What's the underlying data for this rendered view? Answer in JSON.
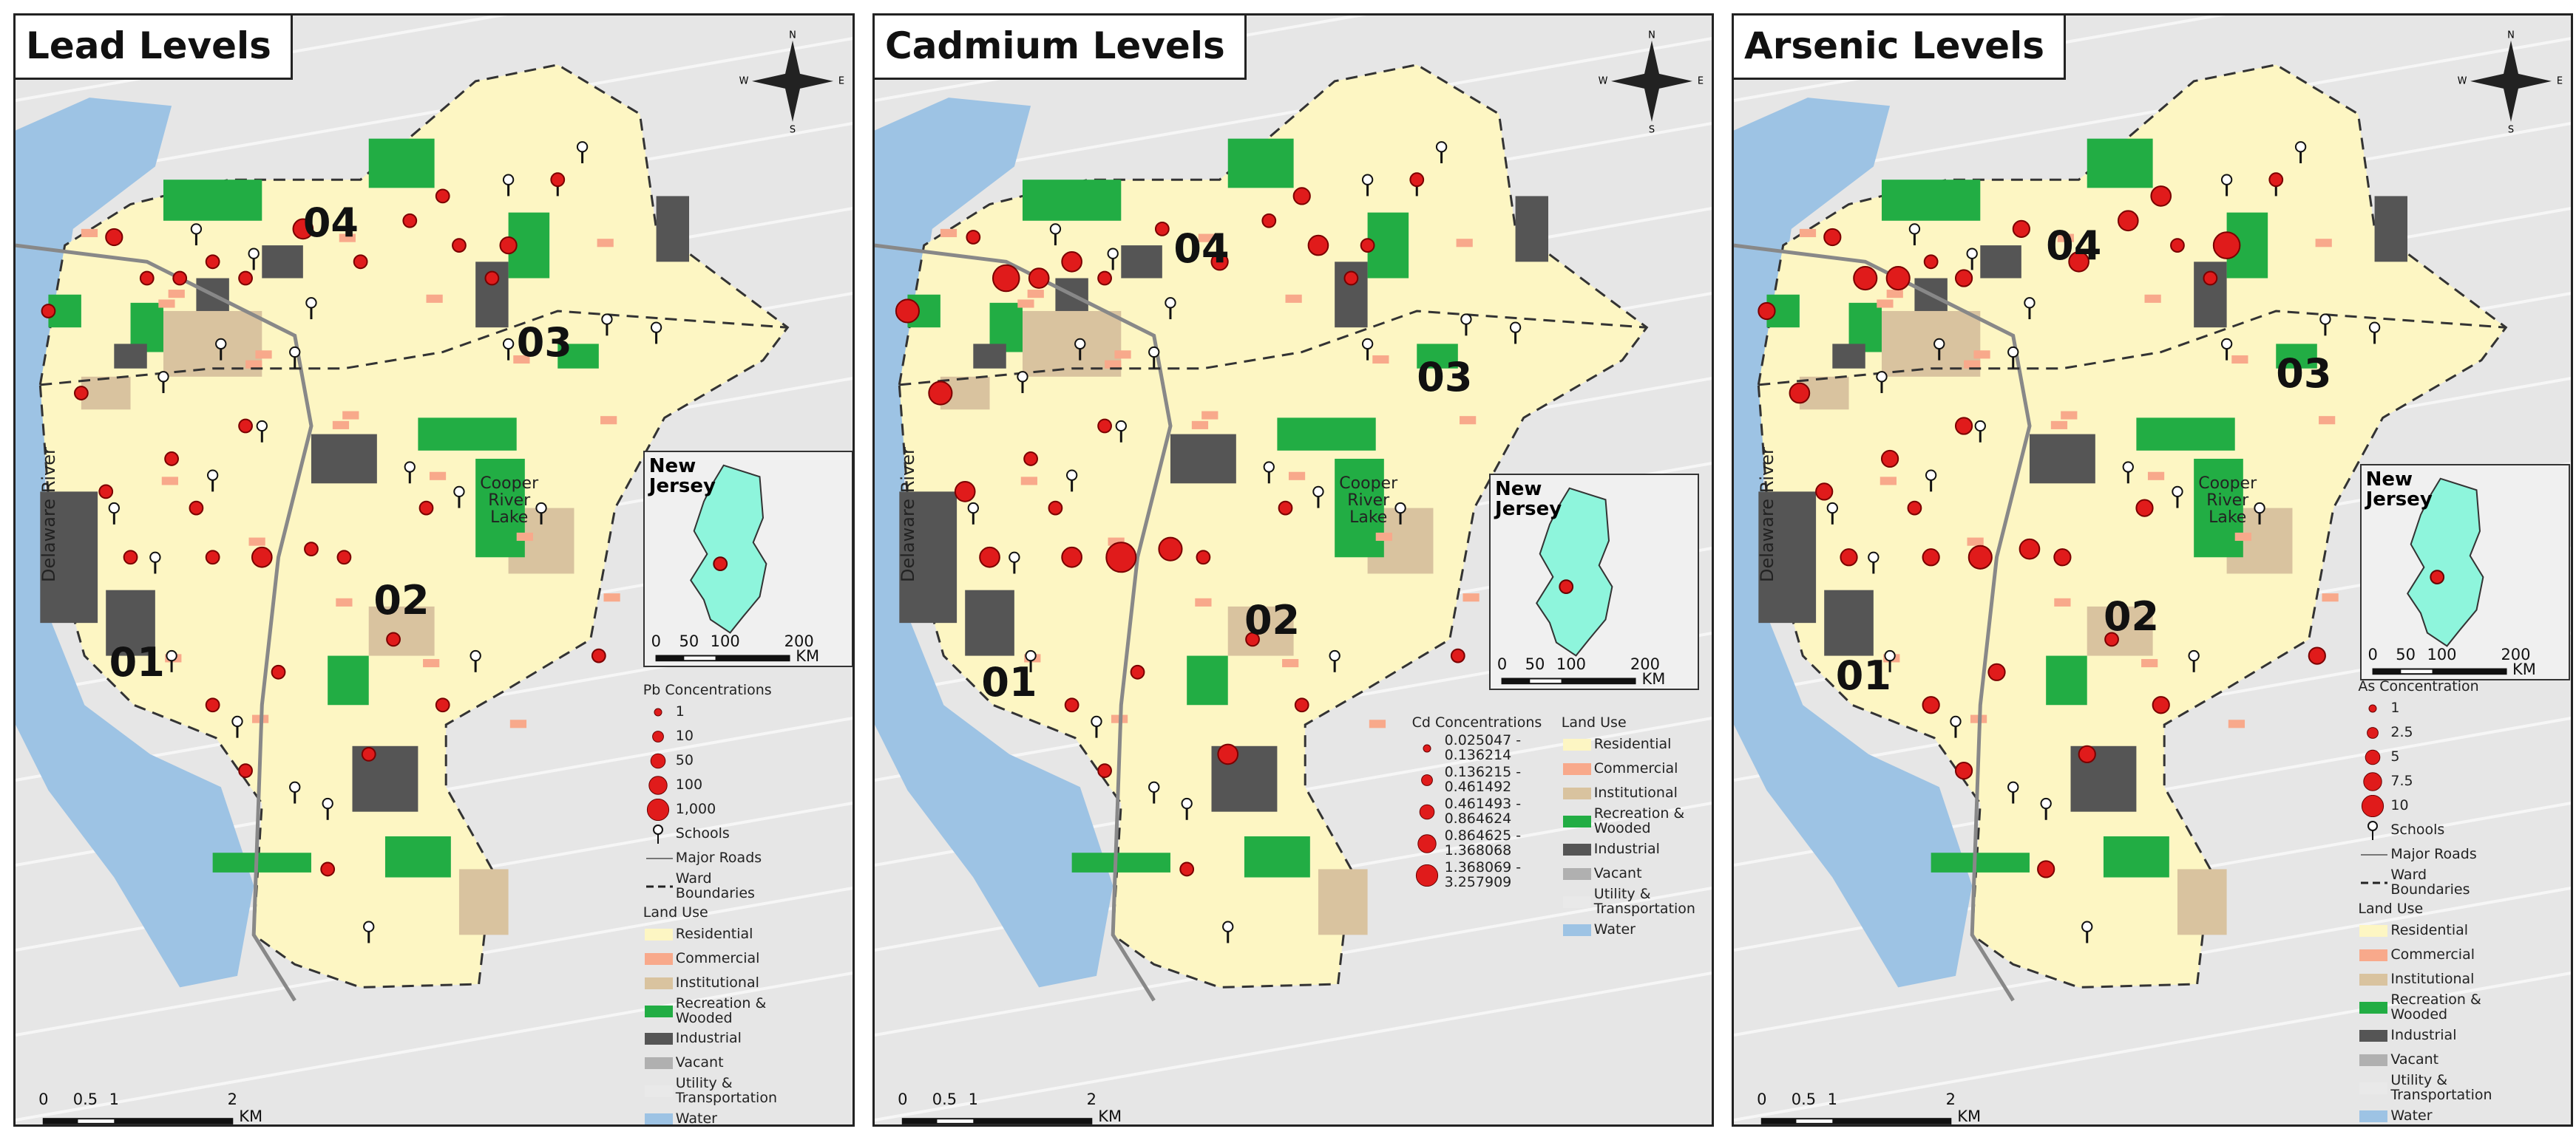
{
  "panels": [
    {
      "title": "Lead Levels",
      "compass": [
        "N",
        "E",
        "S",
        "W"
      ],
      "wards": [
        "04",
        "03",
        "02",
        "01"
      ],
      "river_label": "Delaware River",
      "lake_label": "Cooper River Lake",
      "inset": {
        "title": "New Jersey",
        "scale": [
          "0",
          "50",
          "100",
          "200"
        ],
        "unit": "KM"
      },
      "legend": {
        "concentration_title": "Pb Concentrations",
        "concentration_items": [
          "1",
          "10",
          "50",
          "100",
          "1,000"
        ],
        "schools": "Schools",
        "major_roads": "Major Roads",
        "ward_boundaries": "Ward Boundaries",
        "land_use_title": "Land Use",
        "land_use": [
          {
            "label": "Residential",
            "color": "#fdf6c3"
          },
          {
            "label": "Commercial",
            "color": "#f8a98b"
          },
          {
            "label": "Institutional",
            "color": "#d9c39f"
          },
          {
            "label": "Recreation & Wooded",
            "color": "#22ad44"
          },
          {
            "label": "Industrial",
            "color": "#555555"
          },
          {
            "label": "Vacant",
            "color": "#b0b0b0"
          },
          {
            "label": "Utility & Transportation",
            "color": "#e9e9e9"
          },
          {
            "label": "Water",
            "color": "#9dc3e4"
          }
        ]
      },
      "scale": {
        "ticks": [
          "0",
          "0.5",
          "1",
          "2"
        ],
        "unit": "KM"
      }
    },
    {
      "title": "Cadmium Levels",
      "compass": [
        "N",
        "E",
        "S",
        "W"
      ],
      "wards": [
        "04",
        "03",
        "02",
        "01"
      ],
      "river_label": "Delaware River",
      "lake_label": "Cooper River Lake",
      "inset": {
        "title": "New Jersey",
        "scale": [
          "0",
          "50",
          "100",
          "200"
        ],
        "unit": "KM"
      },
      "legend": {
        "concentration_title": "Cd Concentrations",
        "concentration_items": [
          "0.025047 - 0.136214",
          "0.136215 - 0.461492",
          "0.461493 - 0.864624",
          "0.864625 - 1.368068",
          "1.368069 - 3.257909"
        ],
        "land_use_title": "Land Use",
        "land_use": [
          {
            "label": "Residential",
            "color": "#fdf6c3"
          },
          {
            "label": "Commercial",
            "color": "#f8a98b"
          },
          {
            "label": "Institutional",
            "color": "#d9c39f"
          },
          {
            "label": "Recreation & Wooded",
            "color": "#22ad44"
          },
          {
            "label": "Industrial",
            "color": "#555555"
          },
          {
            "label": "Vacant",
            "color": "#b0b0b0"
          },
          {
            "label": "Utility & Transportation",
            "color": "#e9e9e9"
          },
          {
            "label": "Water",
            "color": "#9dc3e4"
          }
        ]
      },
      "scale": {
        "ticks": [
          "0",
          "0.5",
          "1",
          "2"
        ],
        "unit": "KM"
      }
    },
    {
      "title": "Arsenic Levels",
      "compass": [
        "N",
        "E",
        "S",
        "W"
      ],
      "wards": [
        "04",
        "03",
        "02",
        "01"
      ],
      "river_label": "Delaware River",
      "lake_label": "Cooper River Lake",
      "inset": {
        "title": "New Jersey",
        "scale": [
          "0",
          "50",
          "100",
          "200"
        ],
        "unit": "KM"
      },
      "legend": {
        "concentration_title": "As Concentration",
        "concentration_items": [
          "1",
          "2.5",
          "5",
          "7.5",
          "10"
        ],
        "schools": "Schools",
        "major_roads": "Major Roads",
        "ward_boundaries": "Ward Boundaries",
        "land_use_title": "Land Use",
        "land_use": [
          {
            "label": "Residential",
            "color": "#fdf6c3"
          },
          {
            "label": "Commercial",
            "color": "#f8a98b"
          },
          {
            "label": "Institutional",
            "color": "#d9c39f"
          },
          {
            "label": "Recreation & Wooded",
            "color": "#22ad44"
          },
          {
            "label": "Industrial",
            "color": "#555555"
          },
          {
            "label": "Vacant",
            "color": "#b0b0b0"
          },
          {
            "label": "Utility & Transportation",
            "color": "#e9e9e9"
          },
          {
            "label": "Water",
            "color": "#9dc3e4"
          }
        ]
      },
      "scale": {
        "ticks": [
          "0",
          "0.5",
          "1",
          "2"
        ],
        "unit": "KM"
      }
    }
  ]
}
